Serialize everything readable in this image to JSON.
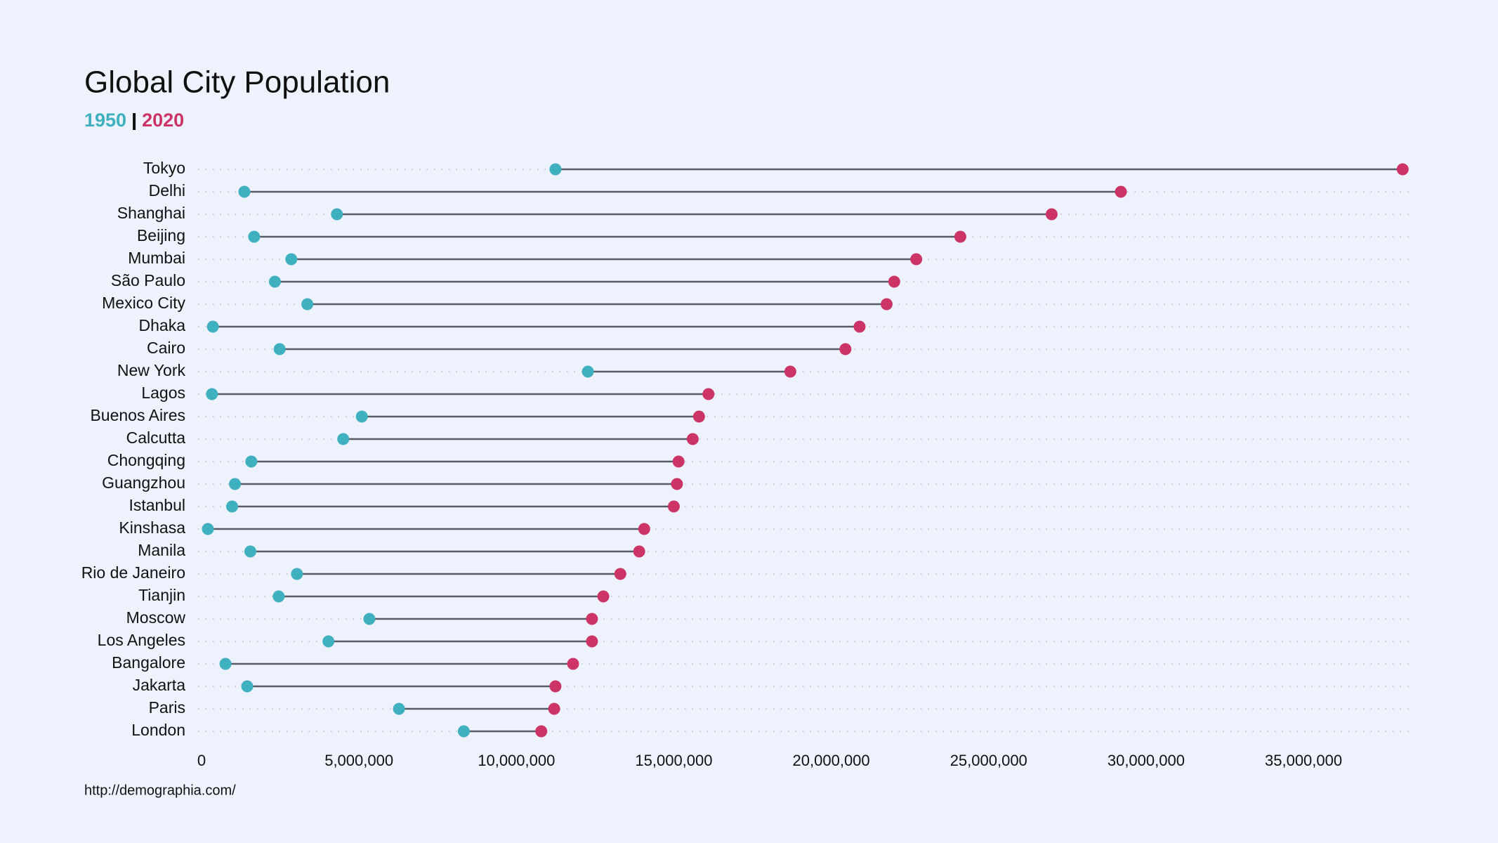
{
  "chart_data": {
    "type": "dumbbell",
    "title": "Global City Population",
    "categories": [
      "Tokyo",
      "Delhi",
      "Shanghai",
      "Beijing",
      "Mumbai",
      "São Paulo",
      "Mexico City",
      "Dhaka",
      "Cairo",
      "New York",
      "Lagos",
      "Buenos Aires",
      "Calcutta",
      "Chongqing",
      "Guangzhou",
      "Istanbul",
      "Kinshasa",
      "Manila",
      "Rio de Janeiro",
      "Tianjin",
      "Moscow",
      "Los Angeles",
      "Bangalore",
      "Jakarta",
      "Paris",
      "London"
    ],
    "series": [
      {
        "name": "1950",
        "color": "#3fb0bf",
        "values": [
          11240000,
          1360000,
          4300000,
          1670000,
          2850000,
          2330000,
          3360000,
          360000,
          2480000,
          12270000,
          330000,
          5090000,
          4500000,
          1580000,
          1060000,
          970000,
          200000,
          1550000,
          3030000,
          2450000,
          5330000,
          4030000,
          760000,
          1450000,
          6270000,
          8330000
        ]
      },
      {
        "name": "2020",
        "color": "#cc3366",
        "values": [
          38150000,
          29200000,
          27000000,
          24100000,
          22700000,
          22000000,
          21760000,
          20900000,
          20450000,
          18700000,
          16100000,
          15800000,
          15600000,
          15150000,
          15100000,
          15000000,
          14060000,
          13900000,
          13300000,
          12760000,
          12400000,
          12400000,
          11800000,
          11240000,
          11200000,
          10790000
        ]
      }
    ],
    "xlim": [
      0,
      38300000
    ],
    "xticks": [
      0,
      {
        "value": 5000000,
        "label": "5,000,000"
      },
      {
        "value": 10000000,
        "label": "10,000,000"
      },
      {
        "value": 15000000,
        "label": "15,000,000"
      },
      {
        "value": 20000000,
        "label": "20,000,000"
      },
      {
        "value": 25000000,
        "label": "25,000,000"
      },
      {
        "value": 30000000,
        "label": "30,000,000"
      },
      {
        "value": 35000000,
        "label": "35,000,000"
      }
    ],
    "grid": true,
    "source": "http://demographia.com/"
  }
}
